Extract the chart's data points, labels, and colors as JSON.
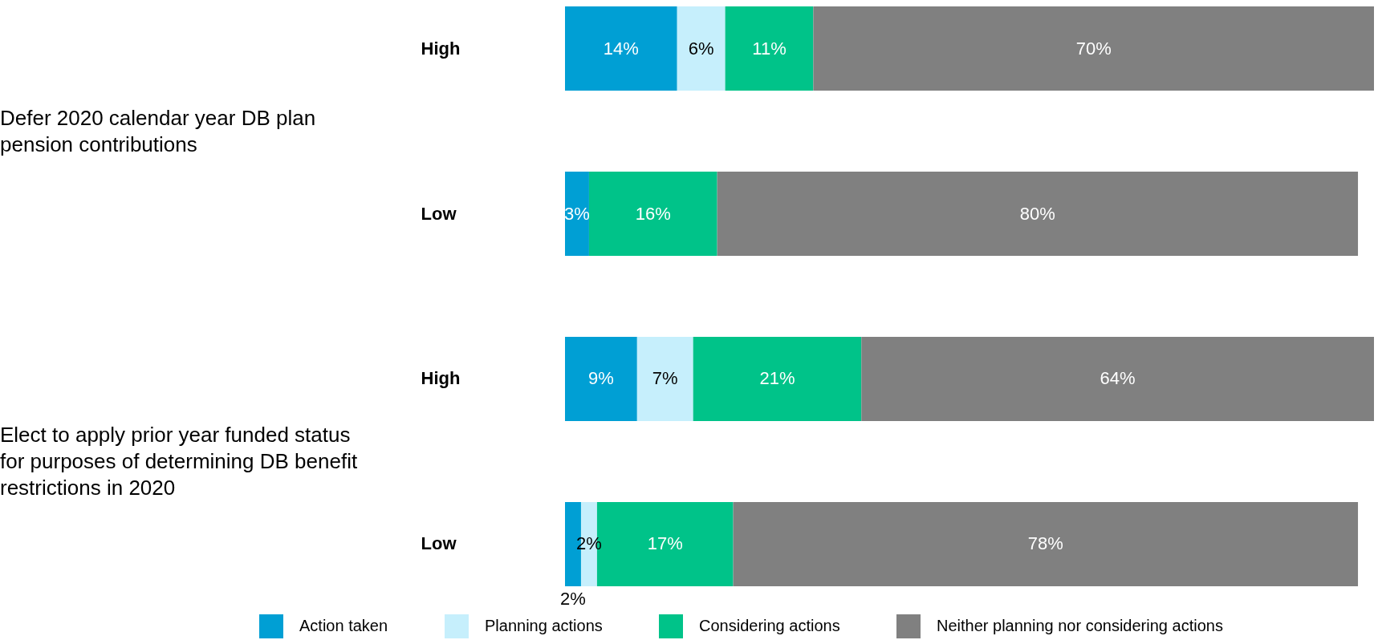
{
  "chart_data": {
    "type": "bar",
    "orientation": "horizontal",
    "stacked": true,
    "legend": "bottom",
    "categories": [
      "High",
      "Low",
      "High",
      "Low"
    ],
    "annotations": [
      "Defer 2020 calendar year DB plan pension contributions",
      "Elect to apply prior year funded status for purposes of determining DB benefit restrictions in 2020"
    ],
    "series": [
      {
        "name": "Action taken",
        "color": "#009fd4",
        "values": [
          14,
          3,
          9,
          2
        ],
        "value_labels": [
          "14%",
          "3%",
          "9%",
          "2%"
        ]
      },
      {
        "name": "Planning actions",
        "color": "#c6effc",
        "values": [
          6,
          null,
          7,
          2
        ],
        "value_labels": [
          "6%",
          null,
          "7%",
          "2%"
        ]
      },
      {
        "name": "Considering actions",
        "color": "#00c389",
        "values": [
          11,
          16,
          21,
          17
        ],
        "value_labels": [
          "11%",
          "16%",
          "21%",
          "17%"
        ]
      },
      {
        "name": "Neither planning nor considering actions",
        "color": "#808080",
        "values": [
          70,
          80,
          64,
          78
        ],
        "value_labels": [
          "70%",
          "80%",
          "64%",
          "78%"
        ]
      }
    ]
  }
}
